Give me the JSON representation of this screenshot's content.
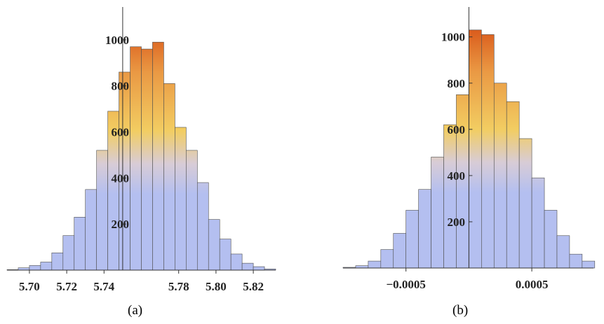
{
  "chart_data": [
    {
      "type": "bar",
      "caption": "(a)",
      "xlim": [
        5.688,
        5.832
      ],
      "ylim": [
        0,
        1100
      ],
      "bin_width": 0.006,
      "bin_centers": [
        5.691,
        5.697,
        5.703,
        5.709,
        5.715,
        5.721,
        5.727,
        5.733,
        5.739,
        5.745,
        5.751,
        5.757,
        5.763,
        5.769,
        5.775,
        5.781,
        5.787,
        5.793,
        5.799,
        5.805,
        5.811,
        5.817,
        5.823,
        5.829
      ],
      "values": [
        2,
        10,
        20,
        35,
        75,
        150,
        230,
        350,
        520,
        690,
        860,
        970,
        960,
        990,
        810,
        620,
        520,
        380,
        220,
        135,
        70,
        30,
        15,
        5
      ],
      "x_axis_value": 5.75,
      "x_ticks": [
        "5.70",
        "5.72",
        "5.74",
        "5.78",
        "5.80",
        "5.82"
      ],
      "x_tick_values": [
        5.7,
        5.72,
        5.74,
        5.78,
        5.8,
        5.82
      ],
      "y_ticks": [
        "200",
        "400",
        "600",
        "800",
        "1000"
      ],
      "y_tick_values": [
        200,
        400,
        600,
        800,
        1000
      ]
    },
    {
      "type": "bar",
      "caption": "(b)",
      "xlim": [
        -0.001,
        0.00099
      ],
      "ylim": [
        0,
        1090
      ],
      "bin_width": 0.0001,
      "bin_centers": [
        -0.00095,
        -0.00085,
        -0.00075,
        -0.00065,
        -0.00055,
        -0.00045,
        -0.00035,
        -0.00025,
        -0.00015,
        -5e-05,
        5e-05,
        0.00015,
        0.00025,
        0.00035,
        0.00045,
        0.00055,
        0.00065,
        0.00075,
        0.00085,
        0.00095
      ],
      "values": [
        3,
        10,
        30,
        80,
        150,
        250,
        340,
        480,
        620,
        750,
        1030,
        1010,
        800,
        720,
        560,
        390,
        250,
        140,
        60,
        30
      ],
      "x_axis_value": 0,
      "x_ticks": [
        "−0.0005",
        "0.0005"
      ],
      "x_tick_values": [
        -0.0005,
        0.0005
      ],
      "y_ticks": [
        "200",
        "400",
        "600",
        "800",
        "1000"
      ],
      "y_tick_values": [
        200,
        400,
        600,
        800,
        1000
      ]
    }
  ],
  "colors": {
    "low": "#b4bff0",
    "mid": "#d8ccd6",
    "yellow": "#f2cd62",
    "orange": "#ea9944",
    "high": "#d5480f",
    "edge": "#4e4e4e",
    "axis": "#333333"
  }
}
